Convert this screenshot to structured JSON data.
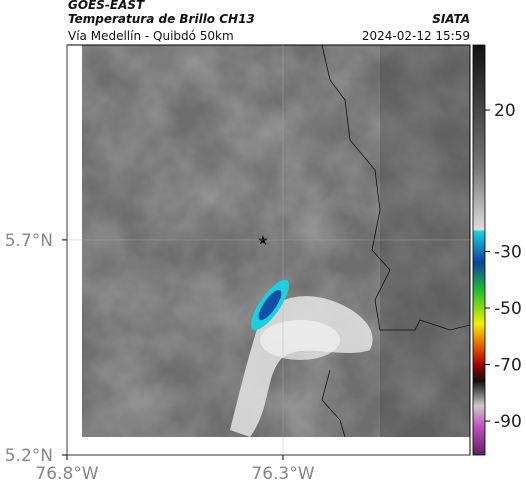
{
  "header": {
    "source": "GOES-EAST",
    "title": "Temperatura de Brillo CH13",
    "org": "SIATA",
    "subtitle": "Vía Medellín - Quibdó 50km",
    "datetime": "2024-02-12 15:59"
  },
  "map": {
    "xlim": [
      -76.8,
      -75.867
    ],
    "ylim": [
      5.2,
      6.153
    ],
    "xticks": [
      {
        "value": -76.8,
        "label": "76.8°W"
      },
      {
        "value": -76.3,
        "label": "76.3°W"
      }
    ],
    "yticks": [
      {
        "value": 5.7,
        "label": "5.7°N"
      },
      {
        "value": 5.2,
        "label": "5.2°N"
      }
    ]
  },
  "colorbar": {
    "lim": [
      -102,
      43
    ],
    "ticks": [
      20,
      -30,
      -50,
      -70,
      -90
    ]
  }
}
